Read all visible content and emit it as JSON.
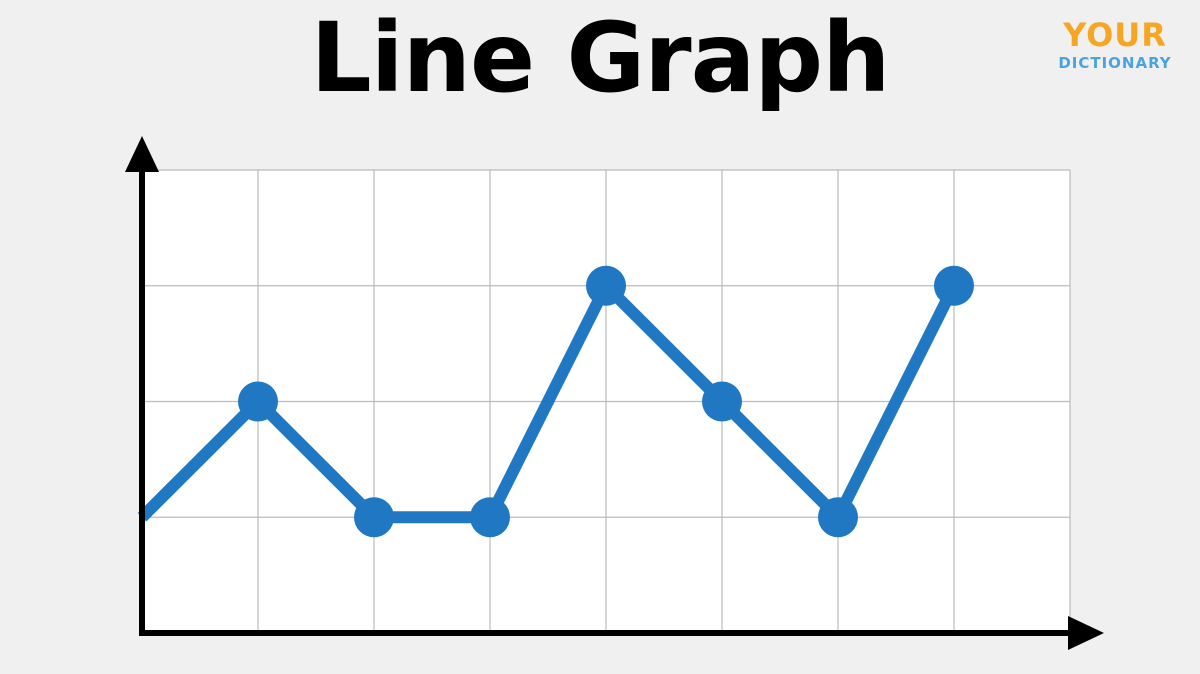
{
  "page": {
    "title": "Line Graph"
  },
  "logo": {
    "main": "YOUR",
    "sub": "DICTIONARY",
    "colors": {
      "main": "#f6a623",
      "sub": "#4aa3df"
    }
  },
  "chart_data": {
    "type": "line",
    "title": "Line Graph",
    "xlabel": "",
    "ylabel": "",
    "x": [
      0,
      1,
      2,
      3,
      4,
      5,
      6,
      7
    ],
    "xlim": [
      0,
      8
    ],
    "ylim": [
      0,
      4
    ],
    "grid": true,
    "series": [
      {
        "values": [
          1,
          2,
          1,
          1,
          3,
          2,
          1,
          3
        ],
        "markers": [
          false,
          true,
          true,
          true,
          true,
          true,
          true,
          true
        ],
        "color": "#1f78c1"
      }
    ],
    "axis_color": "#000000",
    "grid_color": "#bbbbbb",
    "plot_background": "#ffffff"
  }
}
